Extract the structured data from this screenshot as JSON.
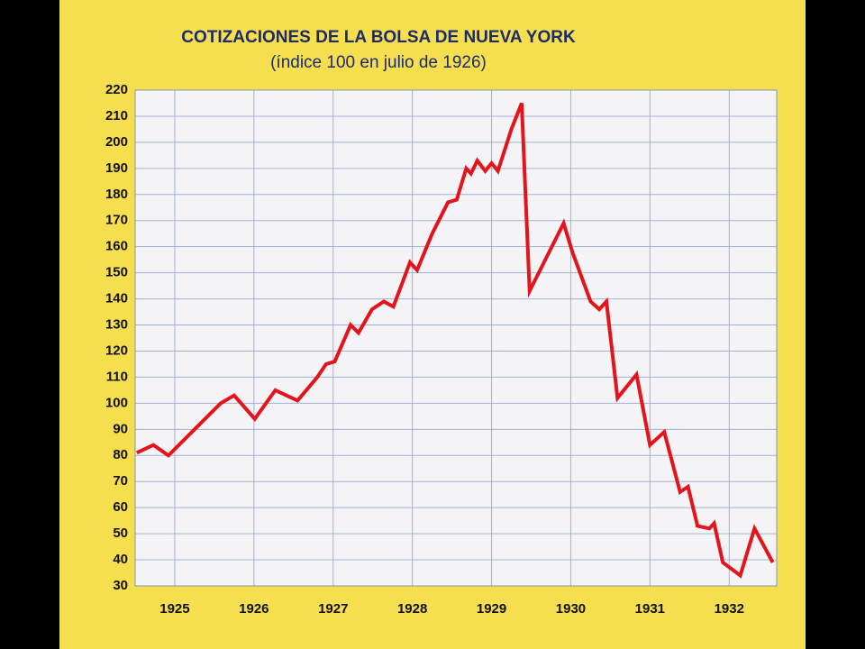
{
  "chart_data": {
    "type": "line",
    "title": "COTIZACIONES DE LA BOLSA DE NUEVA YORK",
    "subtitle": "(índice 100 en julio de 1926)",
    "xlim": [
      1925,
      1933.1
    ],
    "ylim": [
      30,
      220
    ],
    "xticks": [
      {
        "value": 1925.5,
        "label": "1925"
      },
      {
        "value": 1926.5,
        "label": "1926"
      },
      {
        "value": 1927.5,
        "label": "1927"
      },
      {
        "value": 1928.5,
        "label": "1928"
      },
      {
        "value": 1929.5,
        "label": "1929"
      },
      {
        "value": 1930.5,
        "label": "1930"
      },
      {
        "value": 1931.5,
        "label": "1931"
      },
      {
        "value": 1932.5,
        "label": "1932"
      }
    ],
    "yticks": [
      30,
      40,
      50,
      60,
      70,
      80,
      90,
      100,
      110,
      120,
      130,
      140,
      150,
      160,
      170,
      180,
      190,
      200,
      210,
      220
    ],
    "grid": true,
    "series": [
      {
        "color": "#e3141b",
        "x": [
          1925.02,
          1925.23,
          1925.42,
          1926.08,
          1926.25,
          1926.51,
          1926.77,
          1927.05,
          1927.3,
          1927.41,
          1927.52,
          1927.72,
          1927.82,
          1927.99,
          1928.14,
          1928.26,
          1928.47,
          1928.56,
          1928.75,
          1928.95,
          1929.06,
          1929.18,
          1929.24,
          1929.32,
          1929.42,
          1929.5,
          1929.58,
          1929.75,
          1929.88,
          1929.98,
          1930.41,
          1930.52,
          1930.75,
          1930.86,
          1930.95,
          1931.09,
          1931.33,
          1931.5,
          1931.68,
          1931.88,
          1931.98,
          1932.1,
          1932.25,
          1932.31,
          1932.42,
          1932.64,
          1932.82,
          1933.05
        ],
        "values": [
          81,
          84,
          80,
          100,
          103,
          94,
          105,
          101,
          110,
          115,
          116,
          130,
          127,
          136,
          139,
          137,
          154,
          151,
          165,
          177,
          178,
          190,
          188,
          193,
          189,
          192,
          189,
          205,
          215,
          143,
          169,
          158,
          139,
          136,
          139,
          102,
          111,
          84,
          89,
          66,
          68,
          53,
          52,
          54,
          39,
          34,
          52,
          39
        ]
      }
    ]
  }
}
